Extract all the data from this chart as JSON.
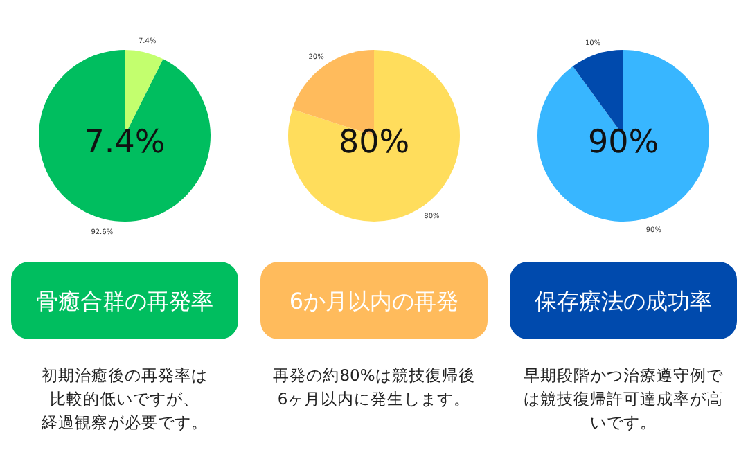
{
  "chart_data": [
    {
      "type": "pie",
      "title": "骨癒合群の再発率",
      "categories": [
        null,
        null
      ],
      "values": [
        7.4,
        92.6
      ],
      "value_labels": [
        "7.4%",
        "92.6%"
      ],
      "colors": [
        "#c3ff6e",
        "#00be5f"
      ],
      "annotations": [
        "7.4%",
        "初期治癒後の再発率は",
        "比較的低いですが、",
        "経過観察が必要です。"
      ]
    },
    {
      "type": "pie",
      "title": "6か月以内の再発",
      "categories": [
        null,
        null
      ],
      "values": [
        80,
        20
      ],
      "value_labels": [
        "80%",
        "20%"
      ],
      "colors": [
        "#ffdd5c",
        "#ffbb5c"
      ],
      "annotations": [
        "80%",
        "再発の約80%は競技復帰後",
        "6ヶ月以内に発生します。"
      ]
    },
    {
      "type": "pie",
      "title": "保存療法の成功率",
      "categories": [
        null,
        null
      ],
      "values": [
        90,
        10
      ],
      "value_labels": [
        "90%",
        "10%"
      ],
      "colors": [
        "#38b6ff",
        "#004aad"
      ],
      "annotations": [
        "90%",
        "早期段階かつ治療遵守例で",
        "は競技復帰許可達成率が高",
        "いです。"
      ]
    }
  ]
}
